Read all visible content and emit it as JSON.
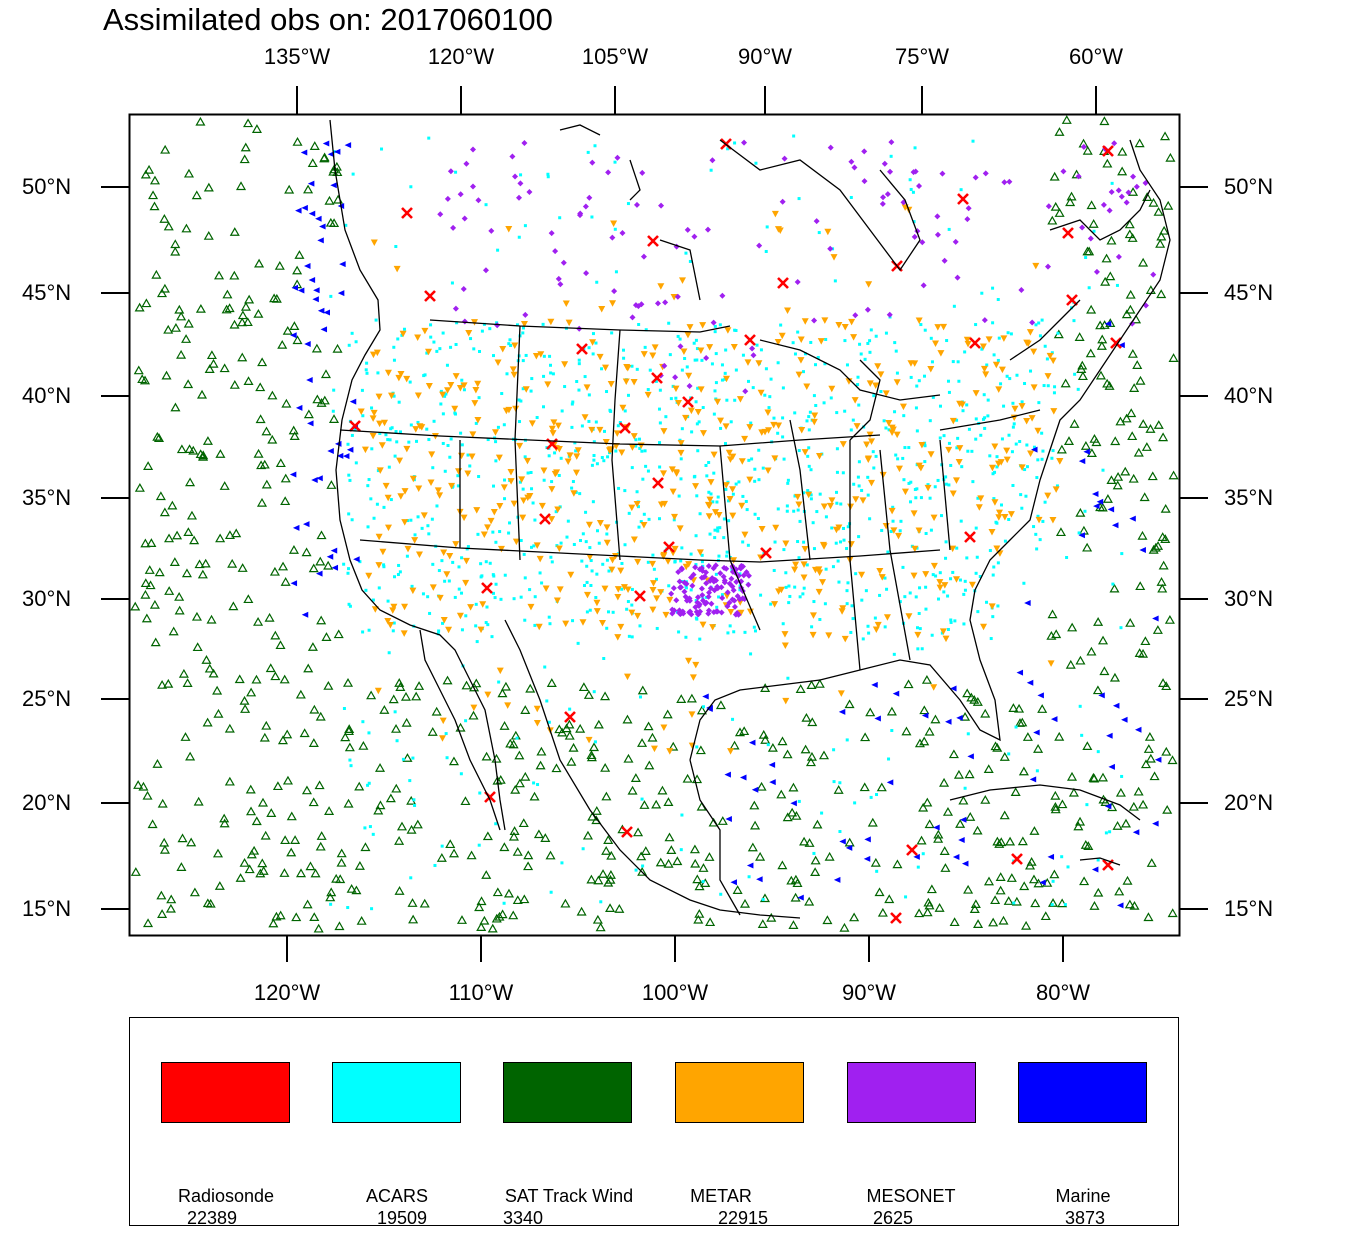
{
  "title": "Assimilated obs on: 2017060100",
  "top_axis_labels": [
    "135°W",
    "120°W",
    "105°W",
    "90°W",
    "75°W",
    "60°W"
  ],
  "bottom_axis_labels": [
    "120°W",
    "110°W",
    "100°W",
    "90°W",
    "80°W"
  ],
  "left_axis_labels": [
    "50°N",
    "45°N",
    "40°N",
    "35°N",
    "30°N",
    "25°N",
    "20°N",
    "15°N"
  ],
  "right_axis_labels": [
    "50°N",
    "45°N",
    "40°N",
    "35°N",
    "30°N",
    "25°N",
    "20°N",
    "15°N"
  ],
  "legend": [
    {
      "name": "Radiosonde",
      "count": "22389",
      "color": "#ff0000",
      "marker": "x-cross-icon"
    },
    {
      "name": "ACARS",
      "count": "19509",
      "color": "#00ffff",
      "marker": "square-dot-icon"
    },
    {
      "name": "SAT Track Wind",
      "count": "3340",
      "color": "#006400",
      "marker": "triangle-outline-icon"
    },
    {
      "name": "METAR",
      "count": "22915",
      "color": "#ffa500",
      "marker": "triangle-down-icon"
    },
    {
      "name": "MESONET",
      "count": "2625",
      "color": "#a020f0",
      "marker": "diamond-icon"
    },
    {
      "name": "Marine",
      "count": "3873",
      "color": "#0000ff",
      "marker": "triangle-left-icon"
    }
  ]
}
